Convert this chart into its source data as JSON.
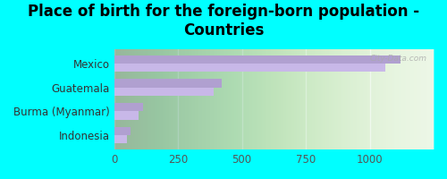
{
  "title": "Place of birth for the foreign-born population -\nCountries",
  "categories": [
    "Mexico",
    "Guatemala",
    "Burma (Myanmar)",
    "Indonesia"
  ],
  "values1": [
    1120,
    420,
    115,
    65
  ],
  "values2": [
    1060,
    390,
    95,
    50
  ],
  "bar_color1": "#b0a0d0",
  "bar_color2": "#c8b8e8",
  "background_outer": "#00ffff",
  "background_inner": "#e8f5e0",
  "xlim": [
    0,
    1250
  ],
  "xticks": [
    0,
    250,
    500,
    750,
    1000
  ],
  "title_fontsize": 12,
  "label_fontsize": 8.5,
  "tick_fontsize": 8.5,
  "watermark": "City-Data.com"
}
